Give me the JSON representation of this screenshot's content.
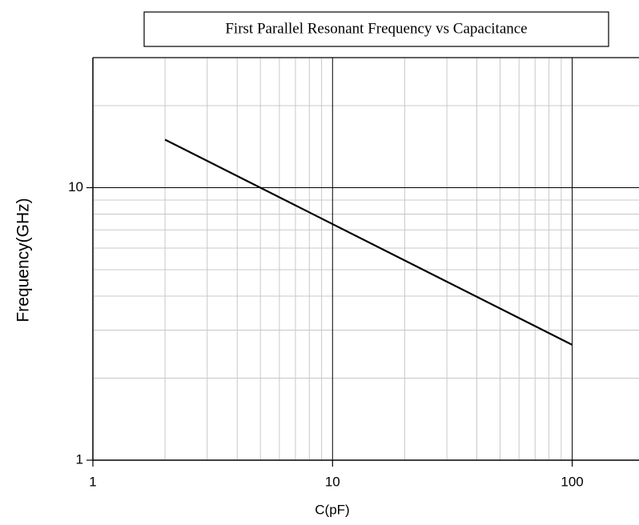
{
  "chart_data": {
    "type": "line",
    "title": "First Parallel Resonant Frequency vs Capacitance",
    "x_label": "C(pF)",
    "y_label": "Frequency(GHz)",
    "x": [
      2,
      100
    ],
    "series": [
      {
        "color": "#000000",
        "values": [
          15,
          2.65
        ]
      }
    ],
    "xlim": [
      1,
      190
    ],
    "ylim": [
      1,
      30
    ],
    "xticks": [
      1,
      10,
      100
    ],
    "yticks": [
      1,
      10
    ],
    "xminor": [
      2,
      3,
      4,
      5,
      6,
      7,
      8,
      9,
      20,
      30,
      40,
      50,
      60,
      70,
      80,
      90
    ],
    "yminor": [
      2,
      3,
      4,
      5,
      6,
      7,
      8,
      9,
      20
    ],
    "xscale": "log",
    "yscale": "log",
    "grid": true
  }
}
